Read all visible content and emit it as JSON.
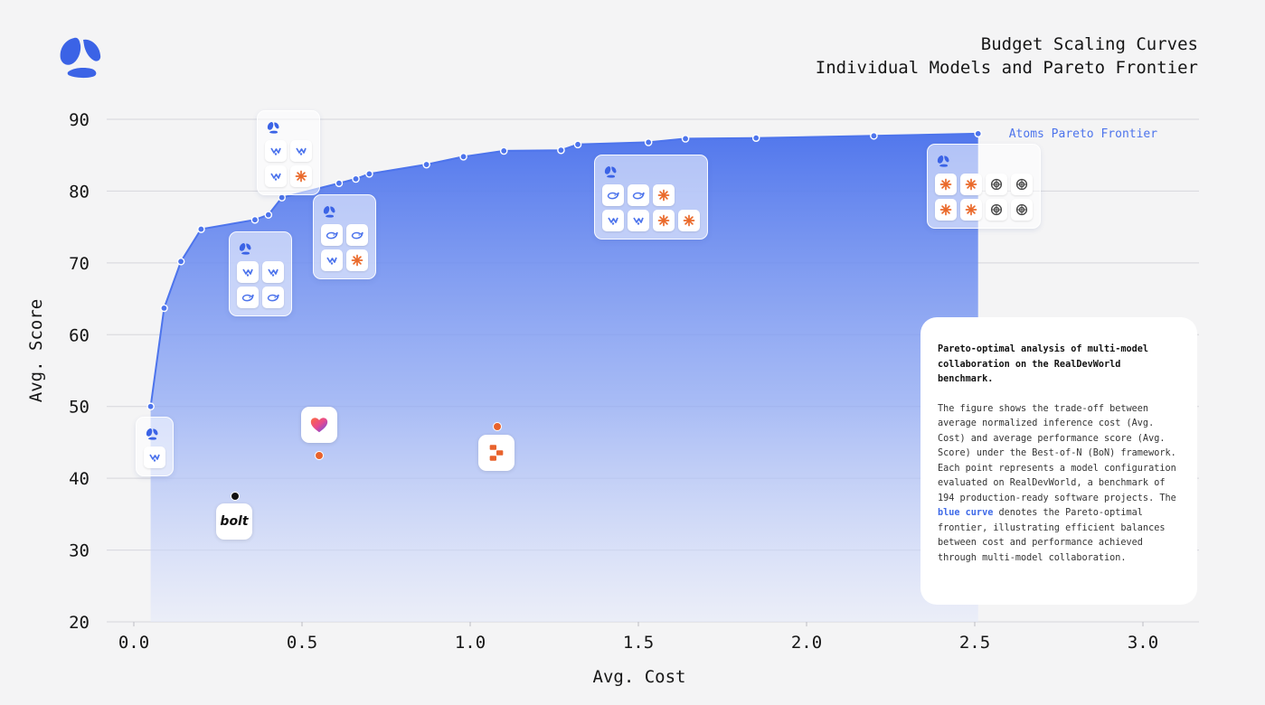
{
  "header": {
    "title_line1": "Budget Scaling Curves",
    "title_line2": "Individual Models and Pareto Frontier"
  },
  "info_box": {
    "heading": "Pareto-optimal analysis of multi-model collaboration on the RealDevWorld benchmark.",
    "body_before": "The figure shows the trade-off between average normalized inference cost (Avg. Cost) and average performance score (Avg. Score) under the Best-of-N (BoN) framework. Each point represents a model configuration evaluated on RealDevWorld, a benchmark of 194 production-ready software projects. The ",
    "highlight": "blue curve",
    "body_after": " denotes the Pareto-optimal frontier, illustrating efficient balances between cost and performance achieved through multi-model collaboration."
  },
  "colors": {
    "frontier": "#4d74ec",
    "orange": "#e8622c",
    "bolt": "#111111"
  },
  "chart_data": {
    "type": "area",
    "xlabel": "Avg. Cost",
    "ylabel": "Avg. Score",
    "xlim": [
      -0.05,
      3.15
    ],
    "ylim": [
      20,
      92
    ],
    "xticks": [
      0.0,
      0.5,
      1.0,
      1.5,
      2.0,
      2.5,
      3.0
    ],
    "yticks": [
      20,
      30,
      40,
      50,
      60,
      70,
      80,
      90
    ],
    "grid": "horizontal",
    "frontier": {
      "name": "Atoms Pareto Frontier",
      "x": [
        0.05,
        0.09,
        0.14,
        0.2,
        0.36,
        0.4,
        0.44,
        0.61,
        0.66,
        0.7,
        0.87,
        0.98,
        1.1,
        1.27,
        1.32,
        1.53,
        1.64,
        1.85,
        2.2,
        2.51
      ],
      "y": [
        50.0,
        63.7,
        70.2,
        74.7,
        76.0,
        76.7,
        79.1,
        81.1,
        81.7,
        82.4,
        83.7,
        84.8,
        85.6,
        85.7,
        86.5,
        86.8,
        87.3,
        87.4,
        87.7,
        88.0
      ]
    },
    "configurations": [
      {
        "x": 0.05,
        "y": 50.0,
        "models": [
          "openai"
        ]
      },
      {
        "x": 0.36,
        "y": 76.0,
        "models": [
          "openai",
          "openai",
          "deepseek",
          "deepseek"
        ]
      },
      {
        "x": 0.44,
        "y": 79.1,
        "models": [
          "openai",
          "openai",
          "openai",
          "claude"
        ]
      },
      {
        "x": 0.61,
        "y": 81.1,
        "models": [
          "deepseek",
          "deepseek",
          "openai",
          "claude"
        ]
      },
      {
        "x": 1.53,
        "y": 86.8,
        "models": [
          "deepseek",
          "deepseek",
          "claude",
          "openai",
          "openai",
          "claude",
          "claude"
        ]
      },
      {
        "x": 2.51,
        "y": 88.0,
        "models": [
          "claude",
          "claude",
          "gpt",
          "gpt",
          "claude",
          "claude",
          "gpt",
          "gpt"
        ]
      }
    ],
    "baselines": [
      {
        "x": 0.3,
        "y": 37.5,
        "brand": "bolt",
        "label": "bolt"
      },
      {
        "x": 0.55,
        "y": 43.2,
        "brand": "lovable"
      },
      {
        "x": 1.08,
        "y": 47.2,
        "brand": "replit"
      }
    ]
  }
}
